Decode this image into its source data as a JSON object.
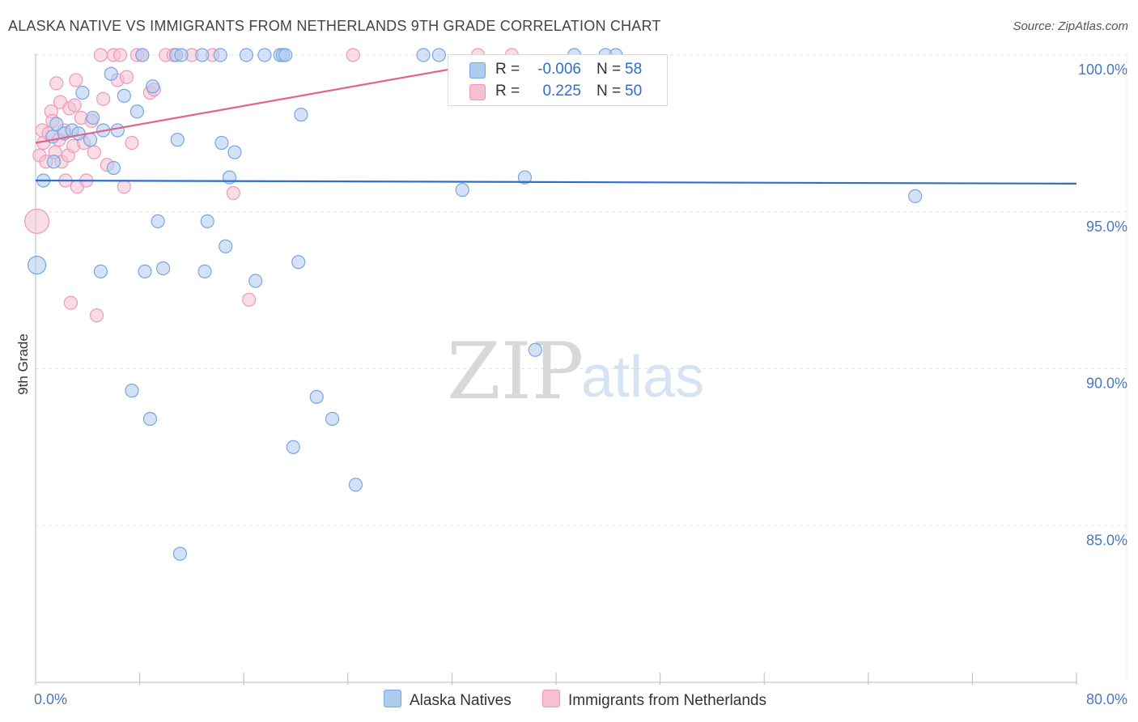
{
  "title": "ALASKA NATIVE VS IMMIGRANTS FROM NETHERLANDS 9TH GRADE CORRELATION CHART",
  "source": "Source: ZipAtlas.com",
  "watermark": {
    "zip": "ZIP",
    "atlas": "atlas"
  },
  "colors": {
    "blue_fill": "#aecbf0",
    "blue_stroke": "#7aa6df",
    "blue_line": "#2e6fce",
    "pink_fill": "#f6c0d2",
    "pink_stroke": "#ee9ab6",
    "pink_line": "#e2648e",
    "grid": "#e3e3e3",
    "tick_text": "#4a78c2"
  },
  "legend_top": {
    "rows": [
      {
        "r_label": "R =",
        "r_value": "-0.006",
        "n_label": "N =",
        "n_value": "58"
      },
      {
        "r_label": "R =",
        "r_value": "0.225",
        "n_label": "N =",
        "n_value": "50"
      }
    ]
  },
  "legend_bottom": {
    "items": [
      {
        "label": "Alaska Natives"
      },
      {
        "label": "Immigrants from Netherlands"
      }
    ]
  },
  "chart_data": {
    "type": "scatter",
    "xlabel": "",
    "ylabel": "9th Grade",
    "xlim": [
      0,
      80
    ],
    "ylim": [
      80.0,
      100.8
    ],
    "x_tick_labels": [
      {
        "value": 0,
        "label": "0.0%"
      },
      {
        "value": 80,
        "label": "80.0%"
      }
    ],
    "x_minor_ticks": [
      0,
      8,
      16,
      24,
      32,
      40,
      48,
      56,
      64,
      72,
      80
    ],
    "y_ticks": [
      {
        "value": 100,
        "label": "100.0%"
      },
      {
        "value": 95,
        "label": "95.0%"
      },
      {
        "value": 90,
        "label": "90.0%"
      },
      {
        "value": 85,
        "label": "85.0%"
      }
    ],
    "series": [
      {
        "name": "Alaska Natives",
        "color_key": "blue",
        "trend": {
          "x": [
            0,
            80
          ],
          "y": [
            96.0,
            95.9
          ]
        },
        "points": [
          [
            0.1,
            93.3,
            11
          ],
          [
            0.6,
            96.0,
            8
          ],
          [
            1.3,
            97.4,
            8
          ],
          [
            1.4,
            96.6,
            8
          ],
          [
            1.6,
            97.8,
            8
          ],
          [
            2.2,
            97.5,
            8
          ],
          [
            2.8,
            97.6,
            8
          ],
          [
            3.3,
            97.5,
            8
          ],
          [
            3.6,
            98.8,
            8
          ],
          [
            4.2,
            97.3,
            8
          ],
          [
            4.4,
            98.0,
            8
          ],
          [
            5.0,
            93.1,
            8
          ],
          [
            5.2,
            97.6,
            8
          ],
          [
            5.8,
            99.4,
            8
          ],
          [
            6.0,
            96.4,
            8
          ],
          [
            6.3,
            97.6,
            8
          ],
          [
            6.8,
            98.7,
            8
          ],
          [
            7.4,
            89.3,
            8
          ],
          [
            7.8,
            98.2,
            8
          ],
          [
            8.2,
            100.0,
            8
          ],
          [
            8.4,
            93.1,
            8
          ],
          [
            8.8,
            88.4,
            8
          ],
          [
            9.0,
            99.0,
            8
          ],
          [
            9.4,
            94.7,
            8
          ],
          [
            9.8,
            93.2,
            8
          ],
          [
            10.8,
            100.0,
            8
          ],
          [
            10.9,
            97.3,
            8
          ],
          [
            11.1,
            84.1,
            8
          ],
          [
            12.8,
            100.0,
            8
          ],
          [
            13.0,
            93.1,
            8
          ],
          [
            13.2,
            94.7,
            8
          ],
          [
            14.2,
            100.0,
            8
          ],
          [
            14.3,
            97.2,
            8
          ],
          [
            14.6,
            93.9,
            8
          ],
          [
            14.9,
            96.1,
            8
          ],
          [
            15.3,
            96.9,
            8
          ],
          [
            16.2,
            100.0,
            8
          ],
          [
            16.9,
            92.8,
            8
          ],
          [
            17.6,
            100.0,
            8
          ],
          [
            18.8,
            100.0,
            8
          ],
          [
            19.0,
            100.0,
            8
          ],
          [
            19.2,
            100.0,
            8
          ],
          [
            19.8,
            87.5,
            8
          ],
          [
            20.2,
            93.4,
            8
          ],
          [
            20.4,
            98.1,
            8
          ],
          [
            21.6,
            89.1,
            8
          ],
          [
            22.8,
            88.4,
            8
          ],
          [
            24.6,
            86.3,
            8
          ],
          [
            29.8,
            100.0,
            8
          ],
          [
            31.0,
            100.0,
            8
          ],
          [
            32.8,
            95.7,
            8
          ],
          [
            37.6,
            96.1,
            8
          ],
          [
            38.4,
            90.6,
            8
          ],
          [
            41.4,
            100.0,
            8
          ],
          [
            43.8,
            100.0,
            8
          ],
          [
            44.6,
            100.0,
            8
          ],
          [
            67.6,
            95.5,
            8
          ],
          [
            11.2,
            100.0,
            8
          ]
        ]
      },
      {
        "name": "Immigrants from Netherlands",
        "color_key": "pink",
        "trend": {
          "x": [
            0,
            38
          ],
          "y": [
            97.2,
            100.0
          ]
        },
        "points": [
          [
            0.1,
            94.7,
            15
          ],
          [
            0.3,
            96.8,
            8
          ],
          [
            0.5,
            97.6,
            8
          ],
          [
            0.6,
            97.2,
            8
          ],
          [
            0.8,
            96.6,
            8
          ],
          [
            1.0,
            97.5,
            8
          ],
          [
            1.2,
            98.2,
            8
          ],
          [
            1.3,
            97.9,
            8
          ],
          [
            1.5,
            96.9,
            8
          ],
          [
            1.6,
            99.1,
            8
          ],
          [
            1.8,
            97.3,
            8
          ],
          [
            1.9,
            98.5,
            8
          ],
          [
            2.0,
            96.6,
            8
          ],
          [
            2.2,
            97.6,
            8
          ],
          [
            2.3,
            96.0,
            8
          ],
          [
            2.5,
            96.8,
            8
          ],
          [
            2.6,
            98.3,
            8
          ],
          [
            2.7,
            92.1,
            8
          ],
          [
            2.9,
            97.1,
            8
          ],
          [
            3.0,
            98.4,
            8
          ],
          [
            3.1,
            99.2,
            8
          ],
          [
            3.2,
            95.8,
            8
          ],
          [
            3.5,
            98.0,
            8
          ],
          [
            3.7,
            97.2,
            8
          ],
          [
            3.9,
            96.0,
            8
          ],
          [
            4.3,
            97.9,
            8
          ],
          [
            4.5,
            96.9,
            8
          ],
          [
            4.7,
            91.7,
            8
          ],
          [
            5.0,
            100.0,
            8
          ],
          [
            5.2,
            98.6,
            8
          ],
          [
            5.5,
            96.5,
            8
          ],
          [
            6.0,
            100.0,
            8
          ],
          [
            6.3,
            99.2,
            8
          ],
          [
            6.5,
            100.0,
            8
          ],
          [
            6.8,
            95.8,
            8
          ],
          [
            7.0,
            99.3,
            8
          ],
          [
            7.4,
            97.2,
            8
          ],
          [
            7.8,
            100.0,
            8
          ],
          [
            8.2,
            100.0,
            8
          ],
          [
            8.8,
            98.8,
            8
          ],
          [
            9.1,
            98.9,
            8
          ],
          [
            10.0,
            100.0,
            8
          ],
          [
            10.6,
            100.0,
            8
          ],
          [
            12.0,
            100.0,
            8
          ],
          [
            13.6,
            100.0,
            8
          ],
          [
            15.2,
            95.6,
            8
          ],
          [
            16.4,
            92.2,
            8
          ],
          [
            24.4,
            100.0,
            8
          ],
          [
            34.0,
            100.0,
            8
          ],
          [
            36.6,
            100.0,
            8
          ]
        ]
      }
    ]
  }
}
